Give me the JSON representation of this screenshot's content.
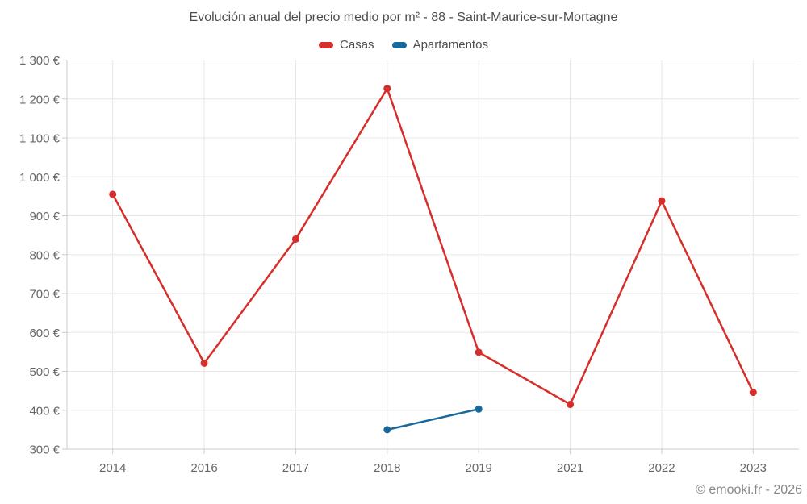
{
  "chart_data": {
    "type": "line",
    "title": "Evolución anual del precio medio por m² - 88 - Saint-Maurice-sur-Mortagne",
    "categories": [
      "2014",
      "2016",
      "2017",
      "2018",
      "2019",
      "2021",
      "2022",
      "2023"
    ],
    "series": [
      {
        "name": "Casas",
        "color": "#d62e2b",
        "values": [
          955,
          521,
          840,
          1227,
          549,
          415,
          938,
          446
        ]
      },
      {
        "name": "Apartamentos",
        "color": "#17699b",
        "values": [
          null,
          null,
          null,
          350,
          403,
          null,
          null,
          null
        ]
      }
    ],
    "y_axis": {
      "min": 300,
      "max": 1300,
      "tick_step": 100,
      "unit": "€",
      "tick_label_example": "1 300 €"
    },
    "xlabel": "",
    "ylabel": "",
    "grid": true,
    "legend_position": "top",
    "marker": "circle"
  },
  "colors": {
    "title_text": "#4d4d4d",
    "legend_text": "#4d4d4d",
    "axis_label_text": "#666666",
    "grid_line": "#e7e7e7",
    "axis_line": "#cccccc",
    "attribution_text": "#888888",
    "background": "#ffffff"
  },
  "footer": {
    "attribution": "© emooki.fr - 2026"
  }
}
